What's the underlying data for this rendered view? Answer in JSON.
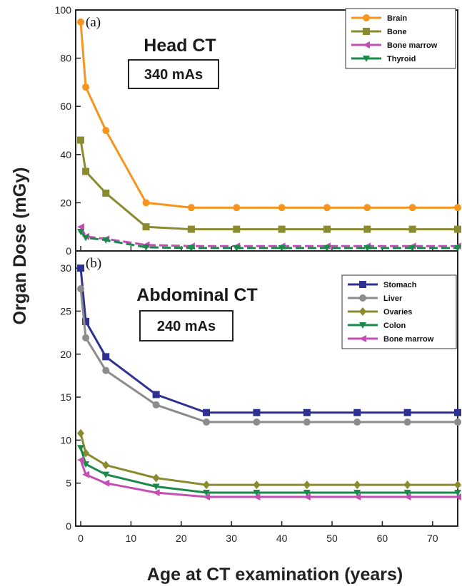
{
  "xlabel": "Age at CT examination (years)",
  "ylabel": "Organ Dose (mGy)",
  "chart_data": [
    {
      "type": "line",
      "panel_label": "(a)",
      "title": "Head CT",
      "box_label": "340 mAs",
      "xlim": [
        -1,
        75
      ],
      "ylim": [
        0,
        100
      ],
      "x_ticks": [
        0,
        10,
        20,
        30,
        40,
        50,
        60,
        70
      ],
      "y_ticks": [
        0,
        20,
        40,
        60,
        80,
        100
      ],
      "legend_position": "top-right",
      "series": [
        {
          "name": "Brain",
          "color": "#f7941d",
          "marker": "circle",
          "x": [
            0,
            1,
            5,
            13,
            22,
            31,
            40,
            49,
            57,
            66,
            75
          ],
          "y": [
            95,
            68,
            50,
            20,
            18,
            18,
            18,
            18,
            18,
            18,
            18
          ]
        },
        {
          "name": "Bone",
          "color": "#8a8a2e",
          "marker": "square",
          "x": [
            0,
            1,
            5,
            13,
            22,
            31,
            40,
            49,
            57,
            66,
            75
          ],
          "y": [
            46,
            33,
            24,
            10,
            9,
            9,
            9,
            9,
            9,
            9,
            9
          ]
        },
        {
          "name": "Bone marrow",
          "color": "#c34fb4",
          "marker": "triangle-left",
          "x": [
            0,
            1,
            5,
            13,
            22,
            31,
            40,
            49,
            57,
            66,
            75
          ],
          "y": [
            10,
            6,
            5,
            2.5,
            2,
            2,
            2,
            2,
            2,
            2,
            2
          ]
        },
        {
          "name": "Thyroid",
          "color": "#1a8a4a",
          "marker": "triangle-down",
          "x": [
            0,
            1,
            5,
            13,
            22,
            31,
            40,
            49,
            57,
            66,
            75
          ],
          "y": [
            8,
            5.5,
            4.5,
            1.5,
            1.2,
            1.2,
            1.2,
            1.2,
            1.2,
            1.2,
            1.2
          ]
        }
      ]
    },
    {
      "type": "line",
      "panel_label": "(b)",
      "title": "Abdominal CT",
      "box_label": "240 mAs",
      "xlim": [
        -1,
        75
      ],
      "ylim": [
        0,
        32
      ],
      "x_ticks": [
        0,
        10,
        20,
        30,
        40,
        50,
        60,
        70
      ],
      "y_ticks": [
        0,
        5,
        10,
        15,
        20,
        25,
        30
      ],
      "legend_position": "top-right",
      "series": [
        {
          "name": "Stomach",
          "color": "#2e3192",
          "marker": "square",
          "x": [
            0,
            1,
            5,
            15,
            25,
            35,
            45,
            55,
            65,
            75
          ],
          "y": [
            30,
            23.8,
            19.7,
            15.3,
            13.2,
            13.2,
            13.2,
            13.2,
            13.2,
            13.2
          ]
        },
        {
          "name": "Liver",
          "color": "#8c8c8c",
          "marker": "circle",
          "x": [
            0,
            1,
            5,
            15,
            25,
            35,
            45,
            55,
            65,
            75
          ],
          "y": [
            27.6,
            21.9,
            18.1,
            14.1,
            12.1,
            12.1,
            12.1,
            12.1,
            12.1,
            12.1
          ]
        },
        {
          "name": "Ovaries",
          "color": "#8a8a2e",
          "marker": "diamond",
          "x": [
            0,
            1,
            5,
            15,
            25,
            35,
            45,
            55,
            65,
            75
          ],
          "y": [
            10.8,
            8.5,
            7.1,
            5.6,
            4.8,
            4.8,
            4.8,
            4.8,
            4.8,
            4.8
          ]
        },
        {
          "name": "Colon",
          "color": "#1a8a4a",
          "marker": "triangle-down",
          "x": [
            0,
            1,
            5,
            15,
            25,
            35,
            45,
            55,
            65,
            75
          ],
          "y": [
            9.1,
            7.2,
            6,
            4.6,
            3.9,
            3.9,
            3.9,
            3.9,
            3.9,
            3.9
          ]
        },
        {
          "name": "Bone marrow",
          "color": "#c34fb4",
          "marker": "triangle-left",
          "x": [
            0,
            1,
            5,
            15,
            25,
            35,
            45,
            55,
            65,
            75
          ],
          "y": [
            7.7,
            6,
            5,
            3.9,
            3.4,
            3.4,
            3.4,
            3.4,
            3.4,
            3.4
          ]
        }
      ]
    }
  ]
}
